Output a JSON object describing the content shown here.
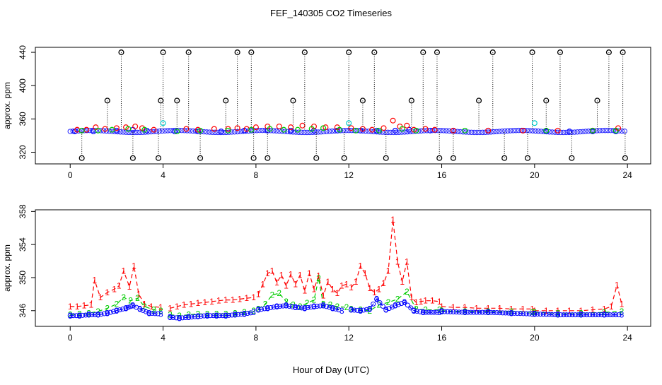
{
  "title": "FEF_140305  CO2 Timeseries",
  "xlabel": "Hour of Day (UTC)",
  "chart_data": [
    {
      "type": "scatter",
      "ylabel": "approx. ppm",
      "xlim": [
        -1.5,
        25
      ],
      "ylim": [
        306,
        446
      ],
      "xticks": [
        0,
        4,
        8,
        12,
        16,
        20,
        24
      ],
      "yticks": [
        320,
        360,
        400,
        440
      ],
      "colors": {
        "1": "#ff0000",
        "2": "#00cc00",
        "3": "#0000ff",
        "4": "#000000",
        "5": "#00cccc"
      },
      "series": [
        {
          "id": "1",
          "x": [
            0.3,
            0.7,
            1.1,
            1.5,
            2.0,
            2.4,
            2.8,
            3.1,
            3.6,
            5.0,
            5.5,
            6.2,
            6.8,
            7.2,
            7.6,
            8.0,
            8.5,
            9.0,
            9.5,
            10.0,
            10.5,
            11.0,
            11.5,
            12.1,
            12.6,
            13.0,
            13.5,
            13.9,
            14.2,
            14.5,
            14.8,
            15.3,
            15.7,
            16.5,
            18.0,
            19.5,
            21.0,
            22.5,
            23.6
          ],
          "y": [
            347,
            347,
            350,
            348,
            349,
            350,
            351,
            349,
            347,
            348,
            347,
            348,
            348,
            349,
            348,
            350,
            351,
            351,
            350,
            352,
            351,
            350,
            350,
            349,
            348,
            347,
            349,
            358,
            351,
            352,
            347,
            348,
            347,
            346,
            346,
            346,
            346,
            346,
            349
          ]
        },
        {
          "id": "2",
          "x": [
            0.5,
            1.2,
            1.8,
            2.5,
            3.2,
            4.6,
            5.6,
            6.8,
            7.8,
            8.6,
            9.2,
            9.8,
            10.4,
            10.9,
            11.6,
            12.3,
            13.3,
            14.3,
            14.9,
            17.0,
            20.5,
            22.5,
            23.5
          ],
          "y": [
            346,
            346,
            347,
            348,
            347,
            345,
            346,
            346,
            347,
            348,
            347,
            347,
            348,
            349,
            347,
            346,
            346,
            348,
            346,
            346,
            346,
            346,
            346
          ]
        },
        {
          "id": "3",
          "x": [
            0.2,
            1.0,
            2.0,
            2.7,
            3.3,
            4.5,
            5.5,
            6.5,
            7.5,
            8.5,
            9.5,
            10.5,
            11.5,
            12.5,
            13.2,
            14.0,
            14.6,
            15.5,
            16.5,
            18.0,
            19.5,
            20.5,
            21.5,
            22.5,
            23.5
          ],
          "y": [
            345,
            345,
            346,
            347,
            346,
            345,
            345,
            345,
            346,
            346,
            346,
            346,
            346,
            346,
            346,
            346,
            347,
            346,
            346,
            346,
            346,
            345,
            345,
            345,
            345
          ]
        },
        {
          "id": "4",
          "x": [
            0.5,
            1.6,
            2.2,
            2.7,
            3.8,
            3.9,
            4.0,
            4.6,
            5.1,
            5.6,
            6.7,
            7.2,
            7.8,
            7.9,
            8.5,
            9.6,
            10.1,
            10.6,
            11.8,
            12.0,
            12.6,
            13.1,
            13.6,
            14.7,
            15.2,
            15.8,
            15.9,
            16.5,
            17.6,
            18.2,
            18.7,
            19.7,
            19.9,
            20.5,
            21.1,
            21.6,
            22.7,
            23.2,
            23.8,
            23.9
          ],
          "y": [
            313,
            382,
            440,
            313,
            313,
            382,
            440,
            382,
            440,
            313,
            382,
            440,
            440,
            313,
            313,
            382,
            440,
            313,
            313,
            440,
            382,
            440,
            313,
            382,
            440,
            440,
            313,
            313,
            382,
            440,
            313,
            313,
            440,
            382,
            440,
            313,
            382,
            440,
            440,
            313
          ]
        },
        {
          "id": "5",
          "x": [
            4.0,
            12.0,
            20.0
          ],
          "y": [
            355,
            355,
            355
          ]
        }
      ]
    },
    {
      "type": "line",
      "ylabel": "approx. ppm",
      "xlim": [
        -1.5,
        25
      ],
      "ylim": [
        344.1,
        358.2
      ],
      "xticks": [
        0,
        4,
        8,
        12,
        16,
        20,
        24
      ],
      "yticks": [
        346,
        350,
        354,
        358
      ],
      "series": [
        {
          "name": "1",
          "color": "#ff0000",
          "x": [
            0.0,
            0.3,
            0.6,
            0.9,
            1.05,
            1.3,
            1.6,
            1.9,
            2.1,
            2.3,
            2.55,
            2.75,
            2.95,
            3.2,
            3.5,
            3.9,
            4.3,
            4.6,
            4.9,
            5.2,
            5.5,
            5.8,
            6.1,
            6.4,
            6.7,
            7.0,
            7.3,
            7.6,
            7.9,
            8.1,
            8.3,
            8.5,
            8.7,
            8.9,
            9.1,
            9.3,
            9.5,
            9.7,
            9.9,
            10.1,
            10.3,
            10.5,
            10.7,
            10.9,
            11.1,
            11.3,
            11.5,
            11.7,
            11.9,
            12.1,
            12.3,
            12.5,
            12.7,
            12.9,
            13.1,
            13.3,
            13.5,
            13.7,
            13.9,
            14.1,
            14.3,
            14.5,
            14.7,
            14.9,
            15.1,
            15.3,
            15.6,
            15.9,
            16.0,
            16.5,
            17.0,
            17.5,
            18.0,
            18.5,
            19.0,
            19.5,
            19.9,
            20.0,
            20.5,
            21.0,
            21.5,
            22.0,
            22.5,
            23.0,
            23.3,
            23.55,
            23.75
          ],
          "y": [
            346.5,
            346.5,
            346.6,
            346.7,
            349.7,
            347.6,
            348.2,
            348.6,
            349.0,
            350.8,
            348.9,
            351.4,
            348.0,
            346.8,
            346.5,
            346.4,
            346.3,
            346.5,
            346.7,
            346.8,
            346.9,
            347.0,
            347.1,
            347.2,
            347.3,
            347.3,
            347.4,
            347.5,
            347.6,
            348.0,
            349.2,
            350.5,
            350.8,
            349.4,
            350.3,
            349.0,
            350.4,
            349.2,
            350.3,
            348.4,
            350.5,
            348.6,
            350.2,
            347.8,
            349.5,
            348.6,
            348.1,
            349.0,
            349.2,
            348.8,
            349.5,
            351.4,
            350.5,
            348.7,
            348.2,
            348.6,
            349.3,
            350.8,
            357.0,
            351.9,
            349.5,
            351.9,
            347.6,
            347.0,
            347.1,
            347.2,
            347.2,
            347.1,
            346.5,
            346.4,
            346.4,
            346.3,
            346.3,
            346.3,
            346.2,
            346.2,
            346.2,
            346.0,
            346.0,
            346.0,
            346.0,
            346.0,
            346.1,
            346.2,
            346.5,
            349.1,
            346.8
          ]
        },
        {
          "name": "2",
          "color": "#00cc00",
          "x": [
            0.0,
            0.4,
            0.8,
            1.2,
            1.6,
            2.0,
            2.3,
            2.6,
            2.9,
            3.2,
            3.6,
            3.9,
            4.3,
            4.7,
            5.1,
            5.5,
            5.9,
            6.3,
            6.7,
            7.1,
            7.5,
            7.9,
            8.1,
            8.4,
            8.7,
            9.0,
            9.3,
            9.6,
            9.9,
            10.2,
            10.5,
            10.7,
            10.9,
            11.2,
            11.5,
            11.9,
            12.1,
            12.5,
            12.9,
            13.3,
            13.7,
            14.1,
            14.5,
            14.9,
            15.3,
            15.9,
            16.0,
            17.0,
            18.0,
            19.0,
            19.9,
            20.0,
            21.0,
            22.0,
            23.0,
            23.75
          ],
          "y": [
            345.5,
            345.6,
            345.7,
            345.9,
            346.3,
            346.8,
            347.6,
            347.2,
            347.5,
            346.5,
            346.1,
            346.0,
            345.5,
            345.4,
            345.5,
            345.6,
            345.6,
            345.6,
            345.6,
            345.7,
            345.8,
            346.0,
            346.2,
            346.8,
            347.9,
            348.1,
            347.1,
            346.7,
            346.5,
            346.9,
            347.3,
            349.9,
            346.8,
            346.7,
            346.5,
            346.4,
            346.2,
            346.1,
            346.0,
            346.7,
            347.0,
            347.4,
            348.3,
            346.2,
            346.1,
            346.1,
            346.0,
            345.9,
            345.9,
            345.9,
            345.8,
            345.8,
            345.7,
            345.7,
            345.8,
            345.9
          ]
        },
        {
          "name": "3",
          "color": "#0000ff",
          "x": [
            0.0,
            0.4,
            0.8,
            1.2,
            1.6,
            2.0,
            2.4,
            2.7,
            3.0,
            3.4,
            3.9,
            4.3,
            4.7,
            5.1,
            5.5,
            5.9,
            6.3,
            6.7,
            7.1,
            7.5,
            7.9,
            8.1,
            8.5,
            8.9,
            9.3,
            9.7,
            10.1,
            10.5,
            10.9,
            11.3,
            11.7,
            12.1,
            12.5,
            12.9,
            13.2,
            13.6,
            14.0,
            14.4,
            14.8,
            15.2,
            15.9,
            16.0,
            17.0,
            18.0,
            19.0,
            19.9,
            20.0,
            21.0,
            22.0,
            23.0,
            23.75
          ],
          "y": [
            345.4,
            345.4,
            345.5,
            345.5,
            345.7,
            346.0,
            346.3,
            346.6,
            346.2,
            345.7,
            345.6,
            345.2,
            345.1,
            345.2,
            345.3,
            345.4,
            345.4,
            345.4,
            345.5,
            345.6,
            345.8,
            346.1,
            346.3,
            346.5,
            346.6,
            346.4,
            346.3,
            346.5,
            346.6,
            346.3,
            346.0,
            346.1,
            346.0,
            346.2,
            347.4,
            346.1,
            346.6,
            347.0,
            346.0,
            345.8,
            345.8,
            345.9,
            345.8,
            345.8,
            345.7,
            345.6,
            345.6,
            345.5,
            345.5,
            345.5,
            345.5
          ]
        }
      ]
    }
  ]
}
